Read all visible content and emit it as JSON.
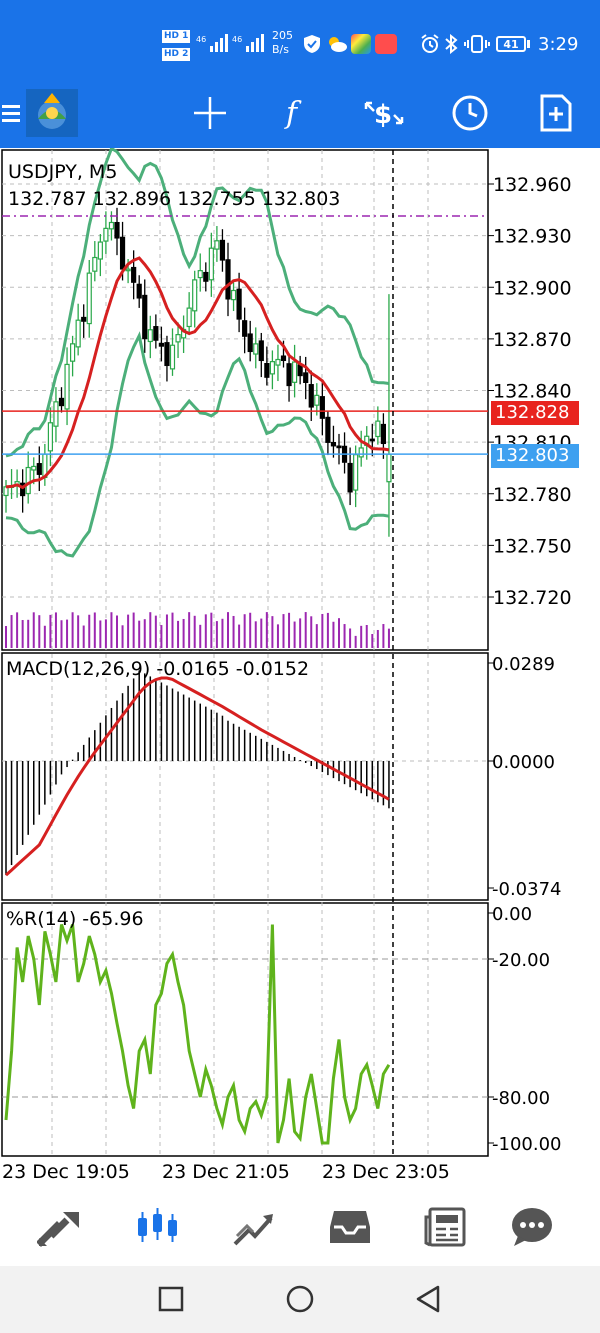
{
  "status_bar": {
    "net_speed": "205",
    "net_unit": "B/s",
    "battery": "41",
    "time": "3:29",
    "hd1": "HD 1",
    "hd2": "HD 2",
    "sig1": "46",
    "sig2": "46"
  },
  "toolbar": {
    "icons": [
      "menu-icon",
      "app-logo",
      "crosshair-icon",
      "function-icon",
      "trade-icon",
      "clock-icon",
      "new-document-icon"
    ]
  },
  "chart": {
    "symbol_label": "USDJPY, M5",
    "ohlc": "132.787 132.896 132.755 132.803",
    "bid_price": "132.828",
    "bid_color": "#e8231e",
    "ask_price": "132.803",
    "ask_color": "#3ea0f0",
    "axis_labels_top": [
      "132.960",
      "132.930",
      "132.900",
      "132.870",
      "132.840",
      "132.810",
      "132.780",
      "132.750",
      "132.720"
    ],
    "time_labels": [
      "23 Dec 19:05",
      "23 Dec 21:05",
      "23 Dec 23:05"
    ],
    "macd_label": "MACD(12,26,9) -0.0165 -0.0152",
    "macd_axis": [
      "0.0289",
      "0.0000",
      "-0.0374"
    ],
    "wpr_label": "%R(14) -65.96",
    "wpr_axis": [
      "0.00",
      "-20.00",
      "-80.00",
      "-100.00"
    ],
    "colors": {
      "bull": "#2aa84a",
      "bear": "#000000",
      "band": "#4caf7a",
      "ma": "#d62020",
      "volume": "#9c27b0",
      "wpr": "#5fb31c",
      "signal": "#d62020"
    }
  },
  "bottom_nav": {
    "tabs": [
      "quotes-tab",
      "chart-tab",
      "trade-tab",
      "history-tab",
      "news-tab",
      "chat-tab"
    ]
  }
}
